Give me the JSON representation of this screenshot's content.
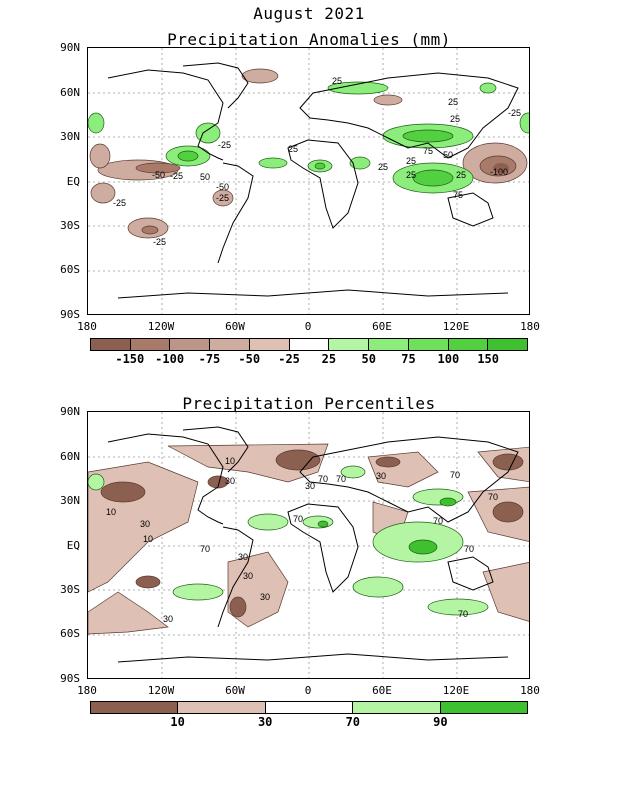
{
  "header": {
    "title": "August 2021"
  },
  "panel1": {
    "title": "Precipitation Anomalies (mm)",
    "lat_labels": [
      "90N",
      "60N",
      "30N",
      "EQ",
      "30S",
      "60S",
      "90S"
    ],
    "lon_labels": [
      "180",
      "120W",
      "60W",
      "0",
      "60E",
      "120E",
      "180"
    ],
    "colorbar": {
      "colors": [
        "#8c6050",
        "#a77a6a",
        "#bd968a",
        "#ceaca0",
        "#dfc0b5",
        "#ffffff",
        "#b4f5a4",
        "#8cec7c",
        "#6ee05c",
        "#52d040",
        "#3ec030"
      ],
      "labels": [
        "-150",
        "-100",
        "-75",
        "-50",
        "-25",
        "25",
        "50",
        "75",
        "100",
        "150"
      ]
    },
    "contour_labels": [
      "25",
      "25",
      "-25",
      "-50",
      "-25",
      "25",
      "-25",
      "-25",
      "-50",
      "50",
      "-25",
      "25",
      "-25",
      "75",
      "50",
      "25",
      "-100",
      "75",
      "25",
      "25",
      "25"
    ]
  },
  "panel2": {
    "title": "Precipitation Percentiles",
    "lat_labels": [
      "90N",
      "60N",
      "30N",
      "EQ",
      "30S",
      "60S",
      "90S"
    ],
    "lon_labels": [
      "180",
      "120W",
      "60W",
      "0",
      "60E",
      "120E",
      "180"
    ],
    "colorbar": {
      "colors": [
        "#8c6050",
        "#dfc0b5",
        "#ffffff",
        "#b4f5a4",
        "#3ec030"
      ],
      "labels": [
        "10",
        "30",
        "70",
        "90"
      ]
    },
    "contour_labels": [
      "10",
      "30",
      "70",
      "30",
      "10",
      "30",
      "10",
      "70",
      "30",
      "70",
      "30",
      "70",
      "70",
      "70",
      "70",
      "30",
      "30",
      "70",
      "30",
      "70"
    ]
  }
}
